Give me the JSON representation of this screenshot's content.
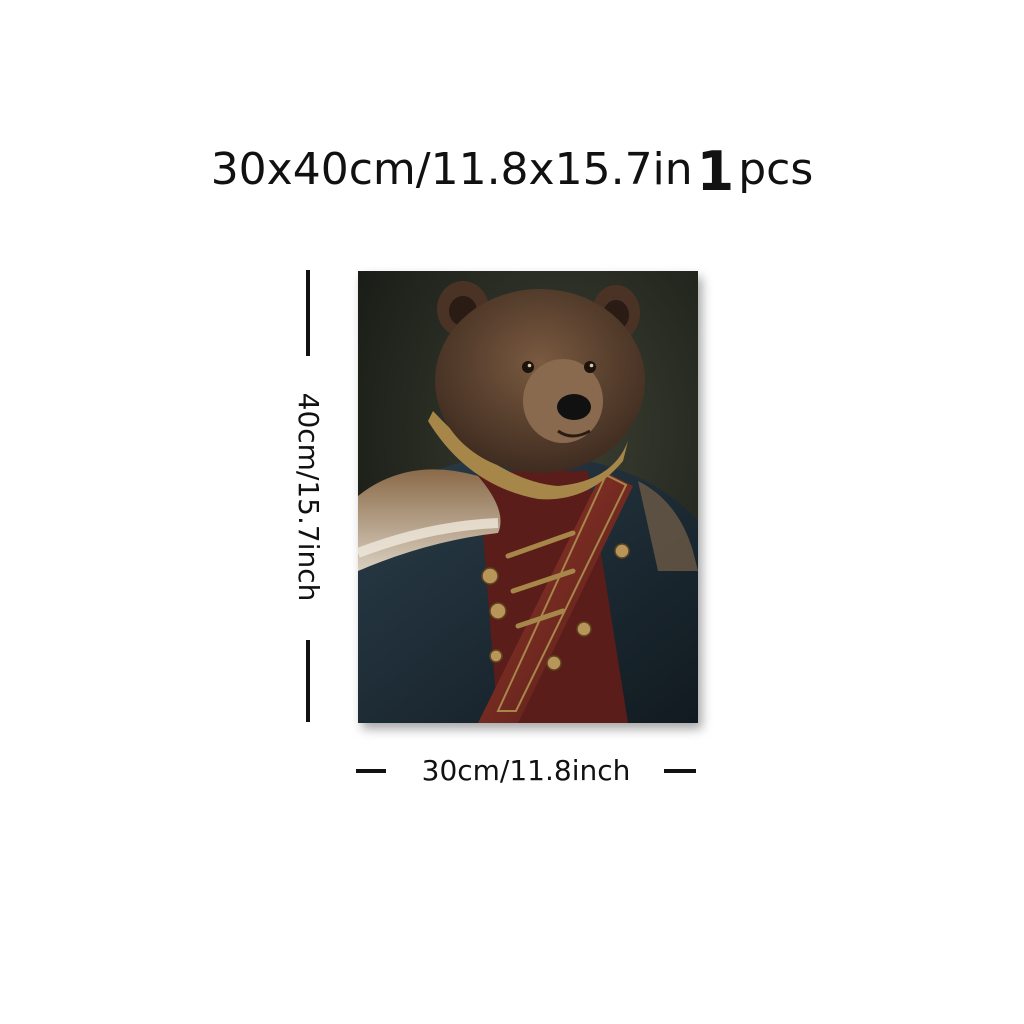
{
  "headline": {
    "size_text": "30x40cm/11.8x15.7in",
    "quantity": "1",
    "unit": "pcs"
  },
  "dimensions": {
    "height_label": "40cm/15.7inch",
    "width_label": "30cm/11.8inch"
  },
  "artwork": {
    "subject": "bear portrait in military uniform",
    "palette": {
      "background": "#20231e",
      "fur": "#5a4130",
      "coat": "#1f2f3a",
      "sash": "#7a2a22",
      "gold": "#a7864a"
    }
  }
}
